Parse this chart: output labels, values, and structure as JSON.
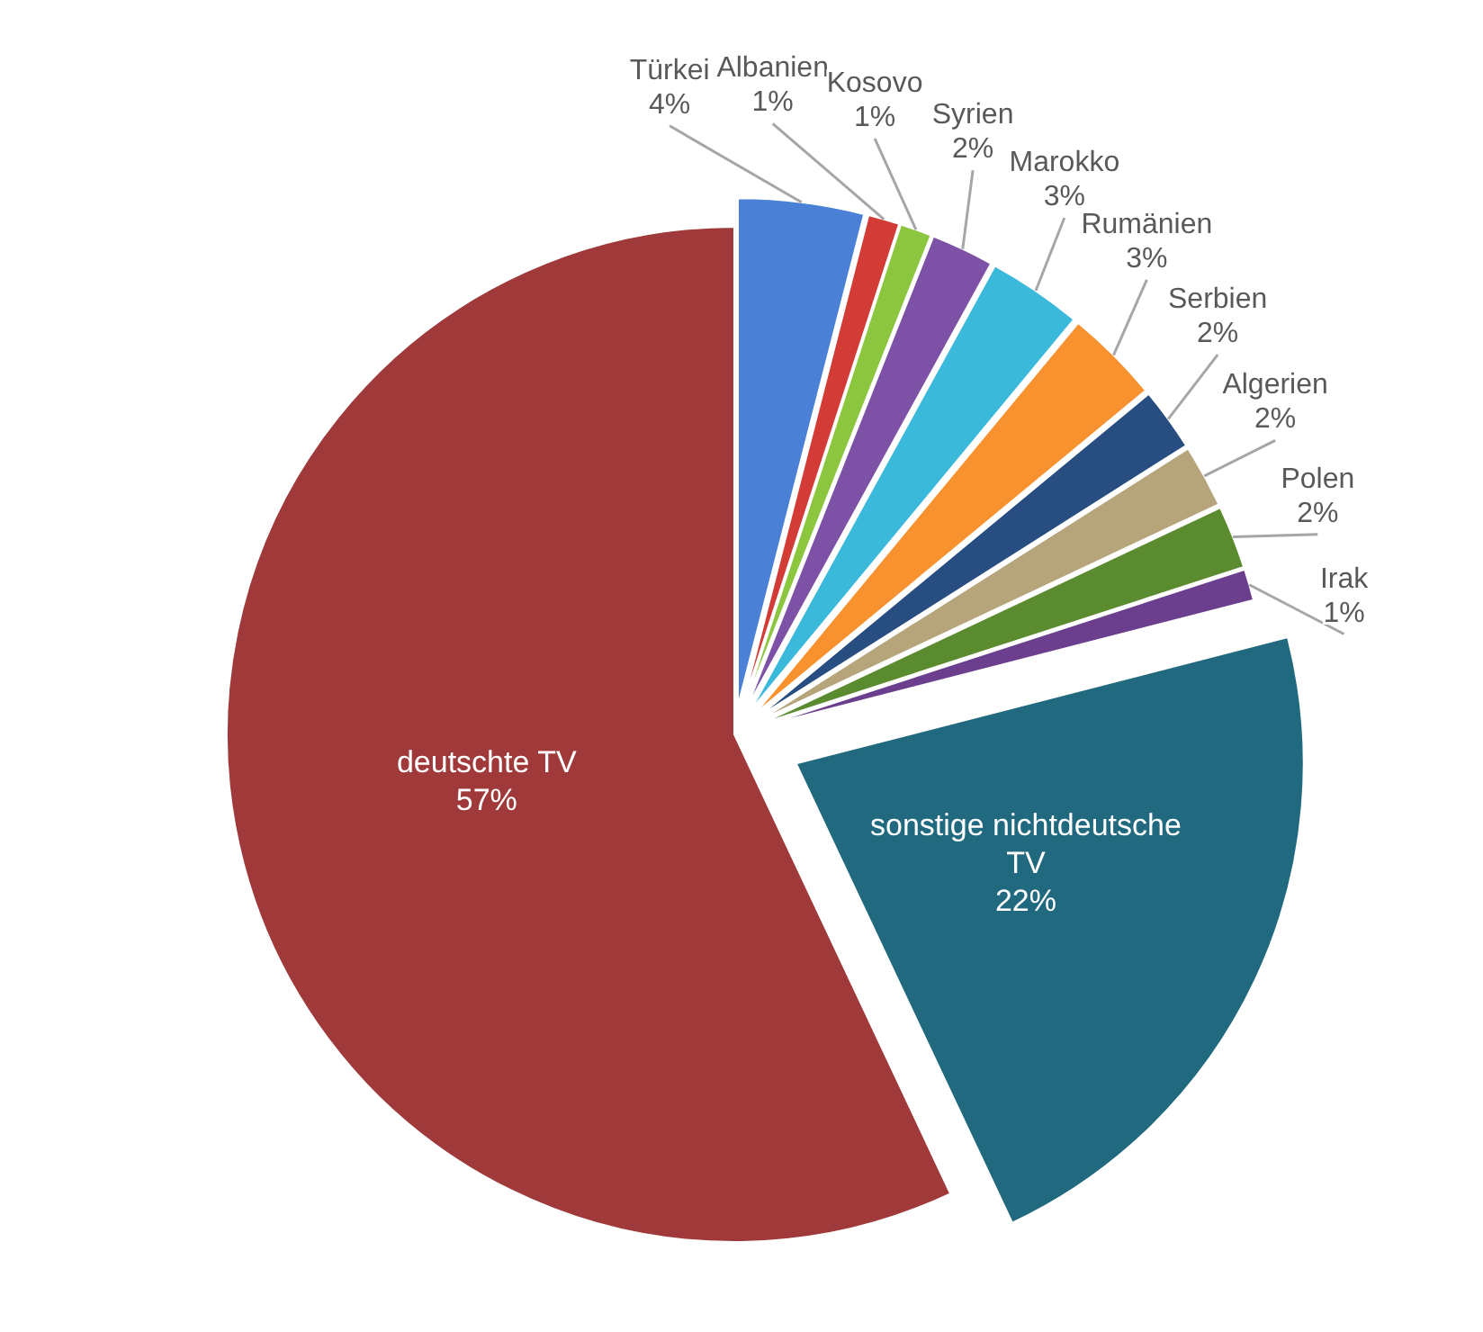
{
  "chart_data": {
    "type": "pie",
    "categories": [
      "Türkei",
      "Albanien",
      "Kosovo",
      "Syrien",
      "Marokko",
      "Rumänien",
      "Serbien",
      "Algerien",
      "Polen",
      "Irak",
      "sonstige nichtdeutsche TV",
      "deutschte TV"
    ],
    "values": [
      4,
      1,
      1,
      2,
      3,
      3,
      2,
      2,
      2,
      1,
      22,
      57
    ],
    "value_labels": [
      "4%",
      "1%",
      "1%",
      "2%",
      "3%",
      "3%",
      "2%",
      "2%",
      "2%",
      "1%",
      "22%",
      "57%"
    ],
    "colors": [
      "#4a80d6",
      "#d33b36",
      "#8cc63e",
      "#7d52a6",
      "#3bb9da",
      "#f7922f",
      "#284d80",
      "#b6a57a",
      "#5b8b2f",
      "#6c3e8e",
      "#21697f",
      "#a03a3a"
    ]
  }
}
